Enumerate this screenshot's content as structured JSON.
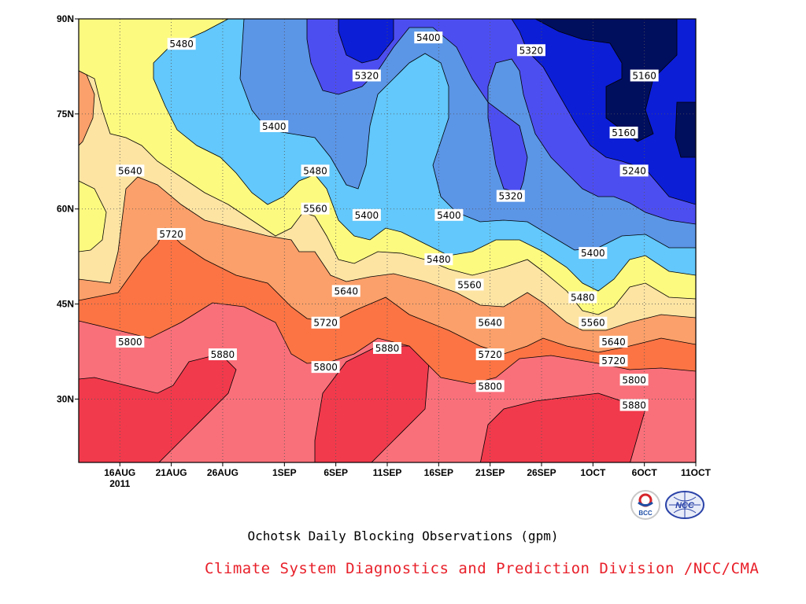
{
  "title": "Ochotsk Daily Blocking Observations (gpm)",
  "credit": "Climate System Diagnostics and Prediction Division /NCC/CMA",
  "colors": {
    "5160": "#000e5e",
    "5240": "#0c1ed6",
    "5320": "#4d4ef0",
    "5400": "#5b95e6",
    "5480": "#63c8fb",
    "5560": "#fdfa80",
    "5640": "#fde4a3",
    "5720": "#fba06a",
    "5800": "#fc7444",
    "5880": "#f9707a",
    "max": "#f13a4c"
  },
  "logos": [
    {
      "text": "BCC",
      "icon": "bcc-logo-icon"
    },
    {
      "text": "NCC",
      "icon": "ncc-logo-icon"
    }
  ],
  "chart_data": {
    "type": "heatmap",
    "title": "Ochotsk Daily Blocking Observations (gpm)",
    "x_ticks": [
      "16AUG\n2011",
      "21AUG",
      "26AUG",
      "1SEP",
      "6SEP",
      "11SEP",
      "16SEP",
      "21SEP",
      "26SEP",
      "1OCT",
      "6OCT",
      "11OCT"
    ],
    "x_range": [
      "2011-08-12",
      "2011-10-11"
    ],
    "y_ticks": [
      "30N",
      "45N",
      "60N",
      "75N",
      "90N"
    ],
    "y_range": [
      20,
      90
    ],
    "contour_levels": [
      5160,
      5240,
      5320,
      5400,
      5480,
      5560,
      5640,
      5720,
      5800,
      5880
    ],
    "contour_labels": [
      {
        "text": "5480",
        "date": "2011-08-22",
        "lat": 86
      },
      {
        "text": "5320",
        "date": "2011-09-09",
        "lat": 81
      },
      {
        "text": "5400",
        "date": "2011-09-15",
        "lat": 87
      },
      {
        "text": "5320",
        "date": "2011-09-25",
        "lat": 85
      },
      {
        "text": "5160",
        "date": "2011-10-06",
        "lat": 81
      },
      {
        "text": "5400",
        "date": "2011-08-31",
        "lat": 73
      },
      {
        "text": "5160",
        "date": "2011-10-04",
        "lat": 72
      },
      {
        "text": "5640",
        "date": "2011-08-17",
        "lat": 66
      },
      {
        "text": "5480",
        "date": "2011-09-04",
        "lat": 66
      },
      {
        "text": "5240",
        "date": "2011-10-05",
        "lat": 66
      },
      {
        "text": "5320",
        "date": "2011-09-23",
        "lat": 62
      },
      {
        "text": "5560",
        "date": "2011-09-04",
        "lat": 60
      },
      {
        "text": "5400",
        "date": "2011-09-09",
        "lat": 59
      },
      {
        "text": "5400",
        "date": "2011-09-17",
        "lat": 59
      },
      {
        "text": "5720",
        "date": "2011-08-21",
        "lat": 56
      },
      {
        "text": "5400",
        "date": "2011-10-01",
        "lat": 53
      },
      {
        "text": "5480",
        "date": "2011-09-16",
        "lat": 52
      },
      {
        "text": "5560",
        "date": "2011-09-19",
        "lat": 48
      },
      {
        "text": "5640",
        "date": "2011-09-07",
        "lat": 47
      },
      {
        "text": "5480",
        "date": "2011-09-30",
        "lat": 46
      },
      {
        "text": "5720",
        "date": "2011-09-05",
        "lat": 42
      },
      {
        "text": "5640",
        "date": "2011-09-21",
        "lat": 42
      },
      {
        "text": "5560",
        "date": "2011-10-01",
        "lat": 42
      },
      {
        "text": "5640",
        "date": "2011-10-03",
        "lat": 39
      },
      {
        "text": "5800",
        "date": "2011-08-17",
        "lat": 39
      },
      {
        "text": "5880",
        "date": "2011-08-26",
        "lat": 37
      },
      {
        "text": "5880",
        "date": "2011-09-11",
        "lat": 38
      },
      {
        "text": "5720",
        "date": "2011-09-21",
        "lat": 37
      },
      {
        "text": "5720",
        "date": "2011-10-03",
        "lat": 36
      },
      {
        "text": "5800",
        "date": "2011-09-05",
        "lat": 35
      },
      {
        "text": "5800",
        "date": "2011-10-05",
        "lat": 33
      },
      {
        "text": "5800",
        "date": "2011-09-21",
        "lat": 32
      },
      {
        "text": "5880",
        "date": "2011-10-05",
        "lat": 29
      }
    ]
  }
}
